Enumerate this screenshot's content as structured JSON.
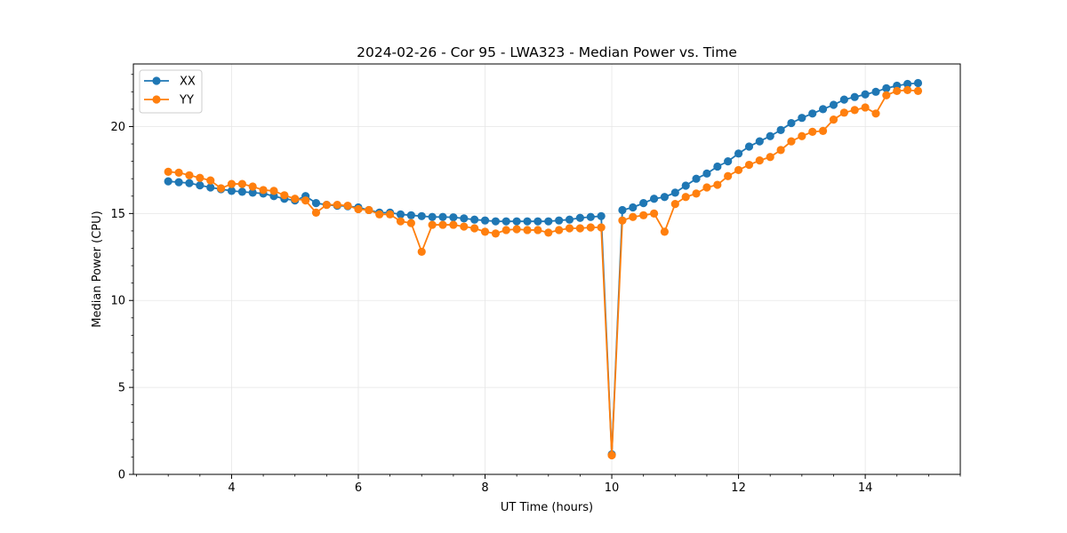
{
  "chart_data": {
    "type": "line",
    "title": "2024-02-26 - Cor 95 - LWA323 - Median Power vs. Time",
    "xlabel": "UT Time (hours)",
    "ylabel": "Median Power (CPU)",
    "xlim": [
      2.45,
      15.5
    ],
    "ylim": [
      0,
      23.6
    ],
    "xticks": [
      4,
      6,
      8,
      10,
      12,
      14
    ],
    "yticks": [
      0,
      5,
      10,
      15,
      20
    ],
    "grid": true,
    "legend_position": "top-left",
    "colors": {
      "XX": "#1f77b4",
      "YY": "#ff7f0e"
    },
    "x": [
      3.0,
      3.167,
      3.333,
      3.5,
      3.667,
      3.833,
      4.0,
      4.167,
      4.333,
      4.5,
      4.667,
      4.833,
      5.0,
      5.167,
      5.333,
      5.5,
      5.667,
      5.833,
      6.0,
      6.167,
      6.333,
      6.5,
      6.667,
      6.833,
      7.0,
      7.167,
      7.333,
      7.5,
      7.667,
      7.833,
      8.0,
      8.167,
      8.333,
      8.5,
      8.667,
      8.833,
      9.0,
      9.167,
      9.333,
      9.5,
      9.667,
      9.833,
      10.0,
      10.167,
      10.333,
      10.5,
      10.667,
      10.833,
      11.0,
      11.167,
      11.333,
      11.5,
      11.667,
      11.833,
      12.0,
      12.167,
      12.333,
      12.5,
      12.667,
      12.833,
      13.0,
      13.167,
      13.333,
      13.5,
      13.667,
      13.833,
      14.0,
      14.167,
      14.333,
      14.5,
      14.667,
      14.833
    ],
    "series": [
      {
        "name": "XX",
        "values": [
          16.85,
          16.8,
          16.75,
          16.62,
          16.5,
          16.4,
          16.3,
          16.25,
          16.2,
          16.15,
          16.0,
          15.85,
          15.75,
          16.0,
          15.6,
          15.5,
          15.45,
          15.42,
          15.35,
          15.2,
          15.05,
          15.05,
          14.95,
          14.9,
          14.85,
          14.8,
          14.8,
          14.78,
          14.72,
          14.65,
          14.6,
          14.55,
          14.55,
          14.55,
          14.55,
          14.55,
          14.55,
          14.6,
          14.65,
          14.75,
          14.8,
          14.85,
          1.15,
          15.2,
          15.35,
          15.6,
          15.85,
          15.95,
          16.2,
          16.6,
          17.0,
          17.3,
          17.7,
          18.0,
          18.45,
          18.85,
          19.15,
          19.45,
          19.8,
          20.2,
          20.5,
          20.75,
          21.0,
          21.25,
          21.55,
          21.7,
          21.85,
          22.0,
          22.2,
          22.35,
          22.45,
          22.5
        ]
      },
      {
        "name": "YY",
        "values": [
          17.4,
          17.35,
          17.2,
          17.05,
          16.9,
          16.45,
          16.7,
          16.7,
          16.55,
          16.35,
          16.3,
          16.05,
          15.85,
          15.75,
          15.05,
          15.5,
          15.5,
          15.45,
          15.25,
          15.2,
          14.95,
          14.95,
          14.55,
          14.45,
          12.8,
          14.35,
          14.35,
          14.35,
          14.25,
          14.15,
          13.95,
          13.85,
          14.05,
          14.1,
          14.05,
          14.05,
          13.9,
          14.05,
          14.15,
          14.15,
          14.2,
          14.2,
          1.1,
          14.6,
          14.8,
          14.9,
          15.0,
          13.95,
          15.55,
          15.95,
          16.15,
          16.5,
          16.65,
          17.15,
          17.5,
          17.8,
          18.05,
          18.25,
          18.65,
          19.15,
          19.45,
          19.7,
          19.75,
          20.4,
          20.8,
          20.95,
          21.1,
          20.75,
          21.8,
          22.05,
          22.1,
          22.05
        ]
      }
    ]
  }
}
